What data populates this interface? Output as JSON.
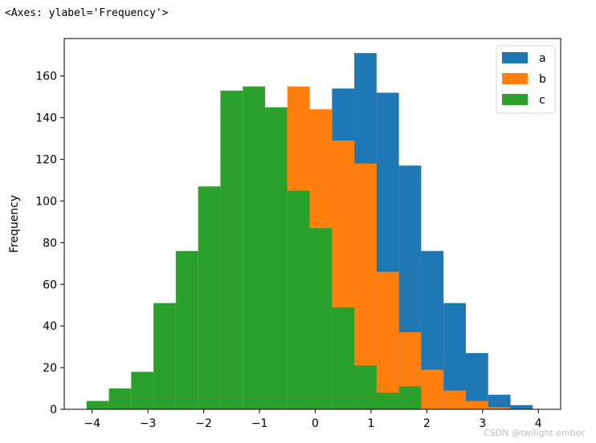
{
  "output_label": "<Axes: ylabel='Frequency'>",
  "watermark": "CSDN @twilight ember",
  "chart_data": {
    "type": "bar",
    "title": "",
    "xlabel": "",
    "ylabel": "Frequency",
    "xlim": [
      -4.5,
      4.4
    ],
    "ylim": [
      0,
      178
    ],
    "xticks": [
      -4,
      -3,
      -2,
      -1,
      0,
      1,
      2,
      3,
      4
    ],
    "xtick_labels": [
      "−4",
      "−3",
      "−2",
      "−1",
      "0",
      "1",
      "2",
      "3",
      "4"
    ],
    "yticks": [
      0,
      20,
      40,
      60,
      80,
      100,
      120,
      140,
      160
    ],
    "grid": false,
    "legend_position": "top-right",
    "bin_edges": [
      -4.1,
      -3.7,
      -3.3,
      -2.9,
      -2.5,
      -2.1,
      -1.7,
      -1.3,
      -0.9,
      -0.5,
      -0.1,
      0.3,
      0.7,
      1.1,
      1.5,
      1.9,
      2.3,
      2.7,
      3.1,
      3.5,
      3.9
    ],
    "series": [
      {
        "name": "a",
        "color": "#1f77b4",
        "values": [
          0,
          0,
          0,
          0,
          0,
          0,
          0,
          0,
          0,
          0,
          0,
          154,
          171,
          152,
          117,
          76,
          51,
          27,
          7,
          2
        ]
      },
      {
        "name": "b",
        "color": "#ff7f0e",
        "values": [
          0,
          0,
          0,
          0,
          0,
          0,
          0,
          0,
          0,
          155,
          144,
          129,
          118,
          66,
          37,
          19,
          9,
          4,
          1,
          0
        ]
      },
      {
        "name": "c",
        "color": "#2ca02c",
        "values": [
          4,
          10,
          18,
          51,
          76,
          107,
          153,
          155,
          145,
          105,
          87,
          49,
          21,
          8,
          11,
          0,
          0,
          0,
          0,
          0
        ]
      }
    ]
  }
}
